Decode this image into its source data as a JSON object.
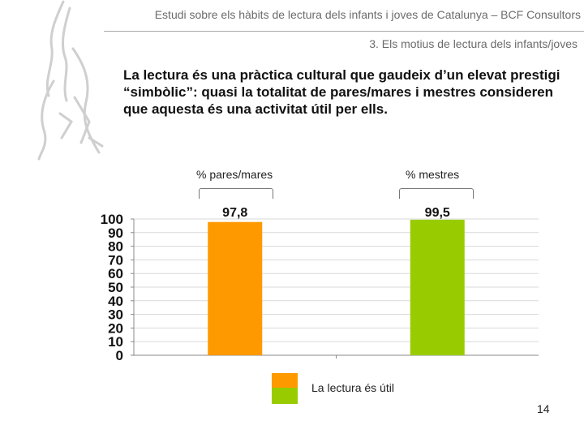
{
  "header": {
    "title": "Estudi sobre els hàbits de lectura dels infants i joves de Catalunya – BCF Consultors",
    "section": "3. Els motius de lectura dels infants/joves"
  },
  "headline": "La lectura és una pràctica cultural que gaudeix d’un elevat prestigi “simbòlic”: quasi la totalitat de pares/mares i mestres consideren que aquesta és una activitat útil per ells.",
  "page_number": "14",
  "chart_data": {
    "type": "bar",
    "categories": [
      "% pares/mares",
      "% mestres"
    ],
    "series": [
      {
        "name": "La lectura és útil",
        "values": [
          97.8,
          99.5
        ]
      }
    ],
    "data_labels": [
      "97,8",
      "99,5"
    ],
    "bar_colors": [
      "#ff9900",
      "#99cc00"
    ],
    "ylim": [
      0,
      100
    ],
    "yticks": [
      "0",
      "10",
      "20",
      "30",
      "40",
      "50",
      "60",
      "70",
      "80",
      "90",
      "100"
    ],
    "gridlines": true,
    "legend": {
      "label": "La lectura és útil",
      "placement": "bottom",
      "colors": [
        "#ff9900",
        "#99cc00"
      ]
    }
  }
}
